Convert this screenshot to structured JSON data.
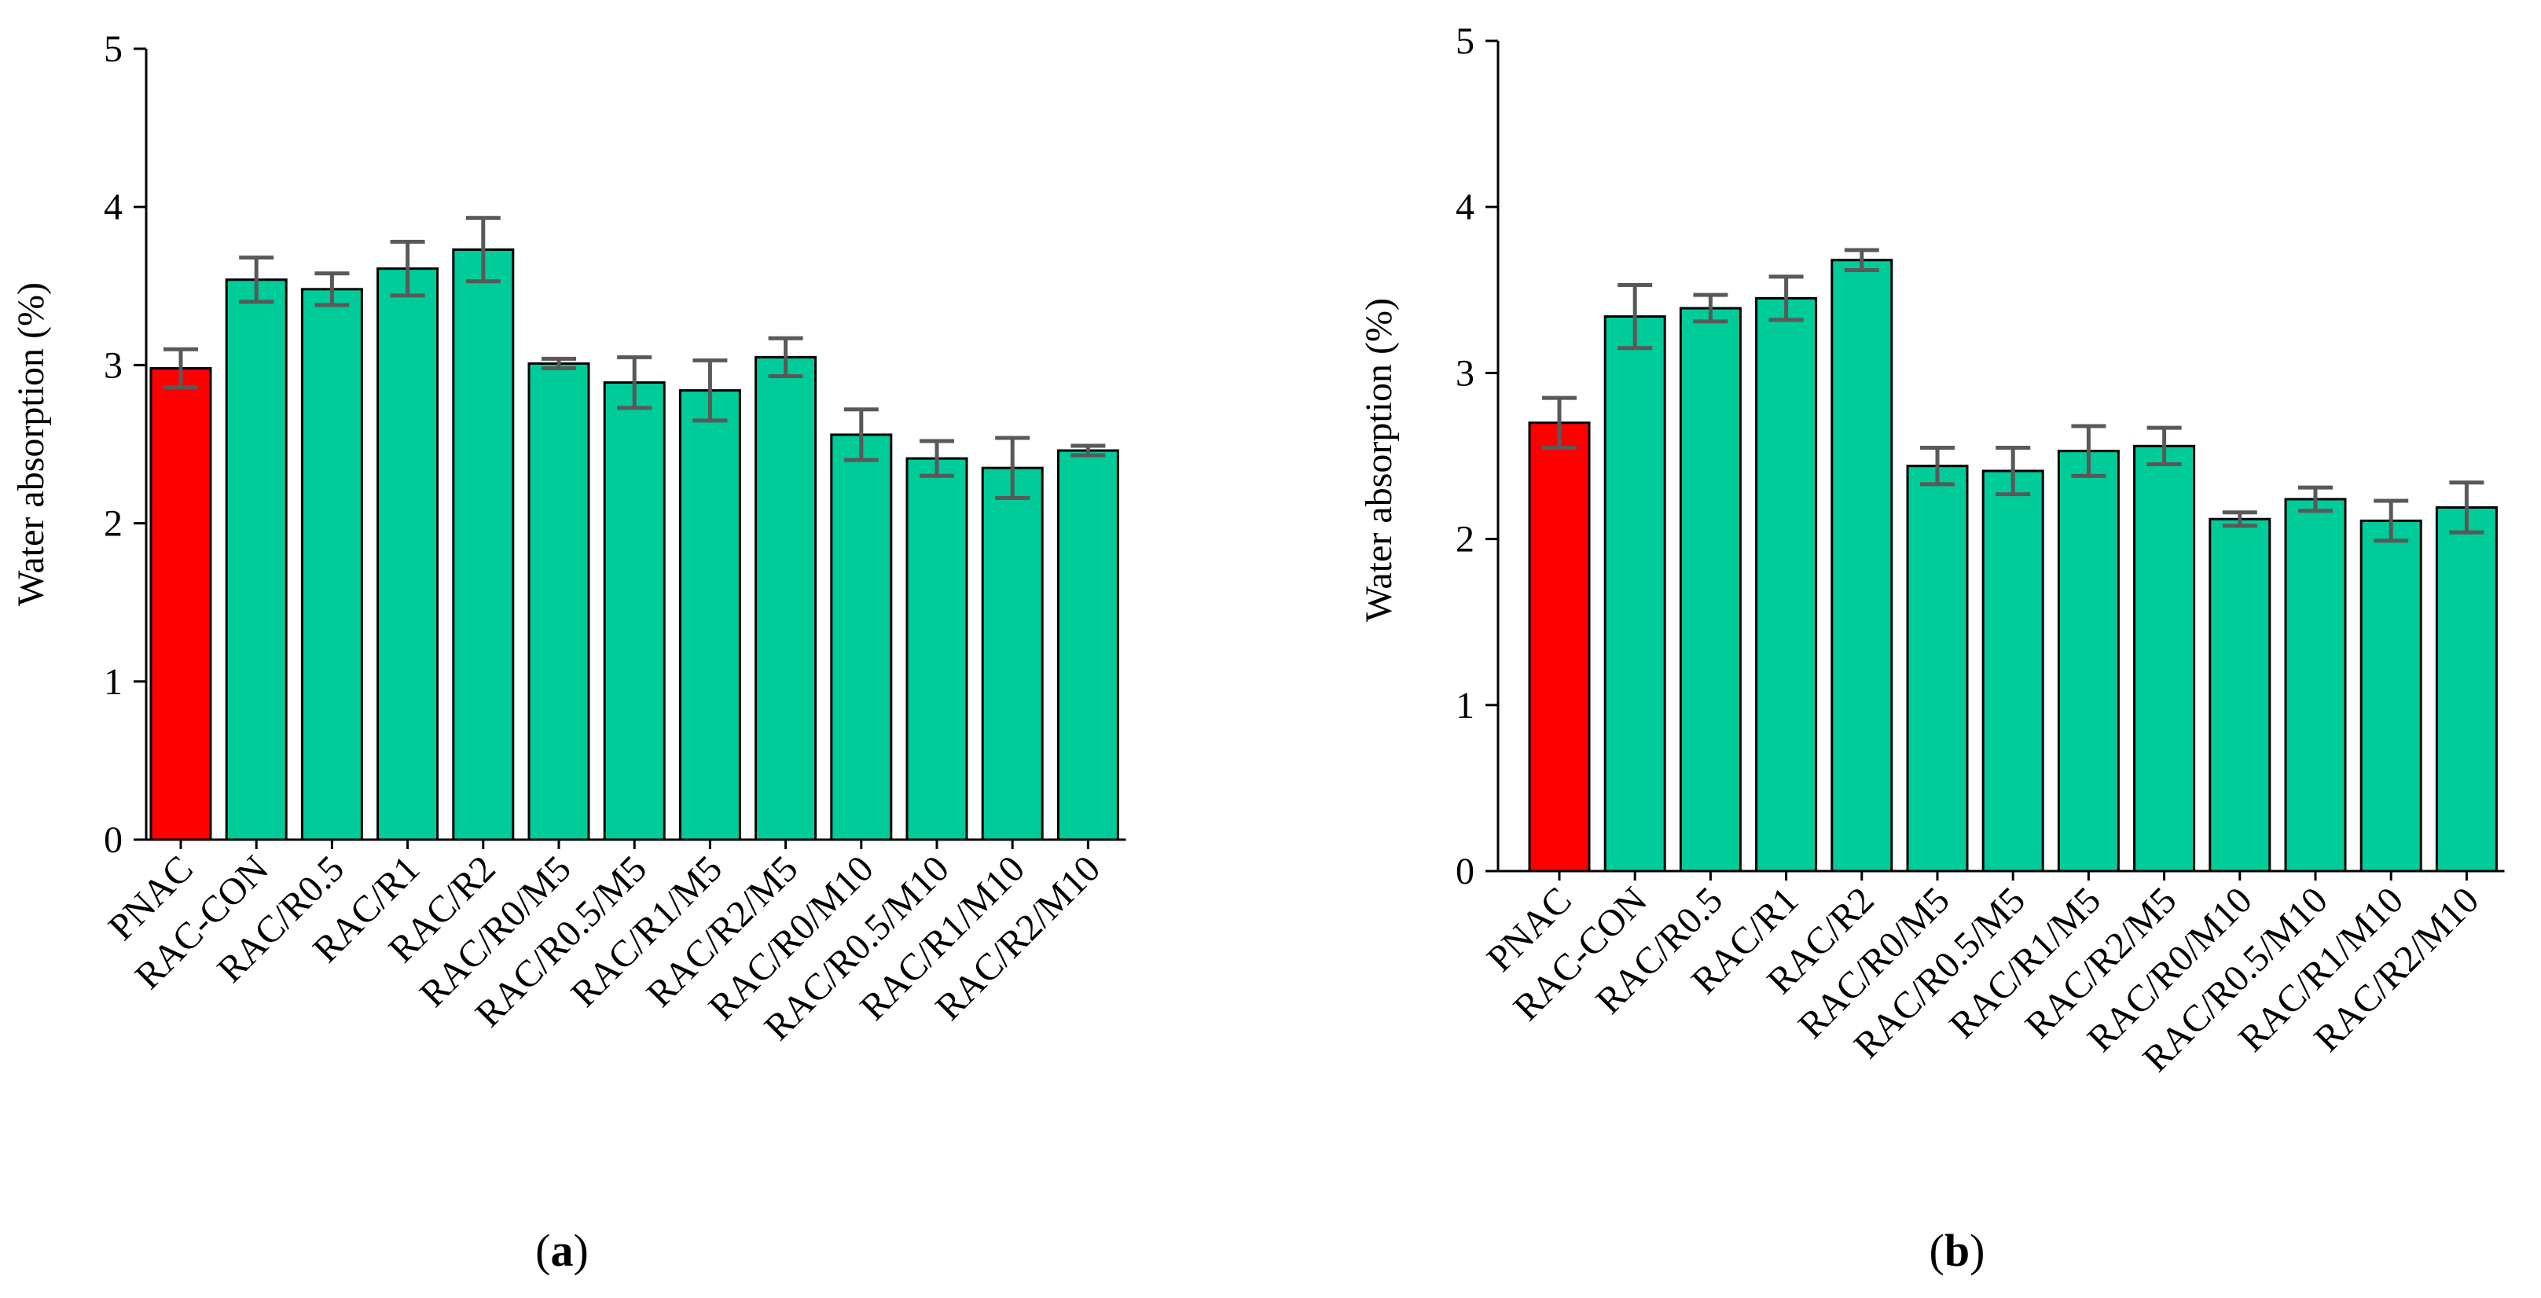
{
  "chart_data": [
    {
      "type": "bar",
      "panel_label": "a",
      "ylabel": "Water absorption (%)",
      "ylim": [
        0,
        5
      ],
      "yticks": [
        0,
        1,
        2,
        3,
        4,
        5
      ],
      "categories": [
        "PNAC",
        "RAC-CON",
        "RAC/R0.5",
        "RAC/R1",
        "RAC/R2",
        "RAC/R0/M5",
        "RAC/R0.5/M5",
        "RAC/R1/M5",
        "RAC/R2/M5",
        "RAC/R0/M10",
        "RAC/R0.5/M10",
        "RAC/R1/M10",
        "RAC/R2/M10"
      ],
      "values": [
        2.98,
        3.54,
        3.48,
        3.61,
        3.73,
        3.01,
        2.89,
        2.84,
        3.05,
        2.56,
        2.41,
        2.35,
        2.46
      ],
      "errors": [
        0.12,
        0.14,
        0.1,
        0.17,
        0.2,
        0.03,
        0.16,
        0.19,
        0.12,
        0.16,
        0.11,
        0.19,
        0.03
      ],
      "bar_colors": [
        "#ff0000",
        "#00cc99",
        "#00cc99",
        "#00cc99",
        "#00cc99",
        "#00cc99",
        "#00cc99",
        "#00cc99",
        "#00cc99",
        "#00cc99",
        "#00cc99",
        "#00cc99",
        "#00cc99"
      ],
      "error_color": "#595959",
      "grid": false,
      "legend": "none"
    },
    {
      "type": "bar",
      "panel_label": "b",
      "ylabel": "Water absorption (%)",
      "ylim": [
        0,
        5
      ],
      "yticks": [
        0,
        1,
        2,
        3,
        4,
        5
      ],
      "categories": [
        "PNAC",
        "RAC-CON",
        "RAC/R0.5",
        "RAC/R1",
        "RAC/R2",
        "RAC/R0/M5",
        "RAC/R0.5/M5",
        "RAC/R1/M5",
        "RAC/R2/M5",
        "RAC/R0/M10",
        "RAC/R0.5/M10",
        "RAC/R1/M10",
        "RAC/R2/M10"
      ],
      "values": [
        2.7,
        3.34,
        3.39,
        3.45,
        3.68,
        2.44,
        2.41,
        2.53,
        2.56,
        2.12,
        2.24,
        2.11,
        2.19
      ],
      "errors": [
        0.15,
        0.19,
        0.08,
        0.13,
        0.06,
        0.11,
        0.14,
        0.15,
        0.11,
        0.04,
        0.07,
        0.12,
        0.15
      ],
      "bar_colors": [
        "#ff0000",
        "#00cc99",
        "#00cc99",
        "#00cc99",
        "#00cc99",
        "#00cc99",
        "#00cc99",
        "#00cc99",
        "#00cc99",
        "#00cc99",
        "#00cc99",
        "#00cc99",
        "#00cc99"
      ],
      "error_color": "#595959",
      "grid": false,
      "legend": "none"
    }
  ]
}
